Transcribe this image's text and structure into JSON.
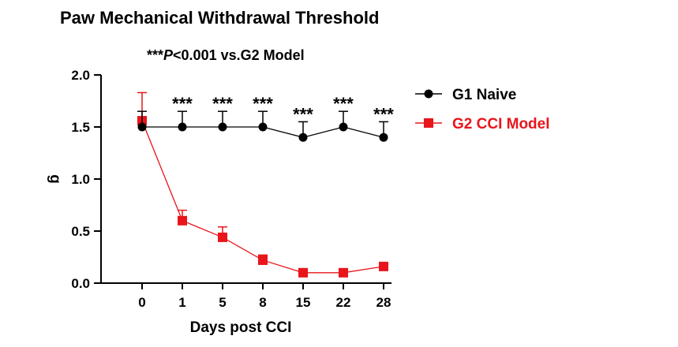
{
  "chart_data": {
    "type": "line",
    "title": "Paw Mechanical Withdrawal Threshold",
    "subtitle": {
      "stars": "***",
      "p_symbol": "P",
      "comparison": "<0.001 vs.G2 Model"
    },
    "xlabel": "Days post CCI",
    "ylabel": "g",
    "categories": [
      "0",
      "1",
      "5",
      "8",
      "15",
      "22",
      "28"
    ],
    "ylim": [
      0,
      2.0
    ],
    "yticks": [
      0.0,
      0.5,
      1.0,
      1.5,
      2.0
    ],
    "ytick_labels": [
      "0.0",
      "0.5",
      "1.0",
      "1.5",
      "2.0"
    ],
    "series": [
      {
        "name": "G1 Naive",
        "color": "#000000",
        "marker": "circle",
        "values": [
          1.5,
          1.5,
          1.5,
          1.5,
          1.4,
          1.5,
          1.4
        ],
        "errors": [
          0.15,
          0.15,
          0.15,
          0.15,
          0.15,
          0.15,
          0.15
        ]
      },
      {
        "name": "G2 CCI Model",
        "color": "#e8151b",
        "marker": "square",
        "values": [
          1.56,
          0.6,
          0.44,
          0.22,
          0.1,
          0.1,
          0.16
        ],
        "errors": [
          0.27,
          0.1,
          0.1,
          0.05,
          0.0,
          0.0,
          0.0
        ]
      }
    ],
    "significance": [
      "",
      "***",
      "***",
      "***",
      "***",
      "***",
      "***"
    ],
    "legend_position": "right"
  }
}
